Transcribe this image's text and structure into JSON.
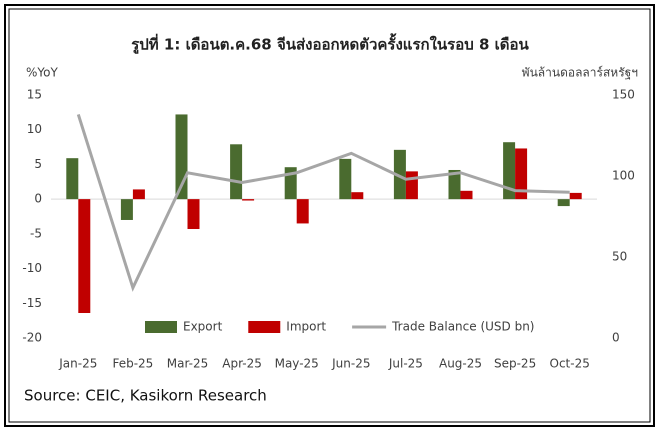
{
  "chart_data": {
    "type": "bar_line",
    "title": "รูปที่ 1: เดือนต.ค.68 จีนส่งออกหดตัวครั้งแรกในรอบ 8 เดือน",
    "y_label": "%YoY",
    "y2_label": "พันล้านดอลลาร์สหรัฐฯ",
    "source": "Source: CEIC, Kasikorn Research",
    "categories": [
      "Jan-25",
      "Feb-25",
      "Mar-25",
      "Apr-25",
      "May-25",
      "Jun-25",
      "Jul-25",
      "Aug-25",
      "Sep-25",
      "Oct-25"
    ],
    "series": [
      {
        "name": "Export",
        "type": "bar",
        "color": "#4a6b2f",
        "values": [
          5.9,
          -3.0,
          12.2,
          7.9,
          4.6,
          5.8,
          7.1,
          4.2,
          8.2,
          -1.0
        ]
      },
      {
        "name": "Import",
        "type": "bar",
        "color": "#c00000",
        "values": [
          -16.4,
          1.4,
          -4.3,
          -0.2,
          -3.5,
          1.0,
          4.0,
          1.2,
          7.3,
          0.9
        ]
      },
      {
        "name": "Trade Balance (USD bn)",
        "type": "line",
        "axis": "y2",
        "color": "#a6a6a6",
        "values": [
          138,
          31,
          102,
          96,
          102,
          114,
          98,
          102,
          91,
          90
        ]
      }
    ],
    "ylim": [
      -20,
      15
    ],
    "yticks": [
      -20,
      -15,
      -10,
      -5,
      0,
      5,
      10,
      15
    ],
    "y2lim": [
      0,
      150
    ],
    "y2ticks": [
      0,
      50,
      100,
      150
    ],
    "legend": "bottom"
  }
}
